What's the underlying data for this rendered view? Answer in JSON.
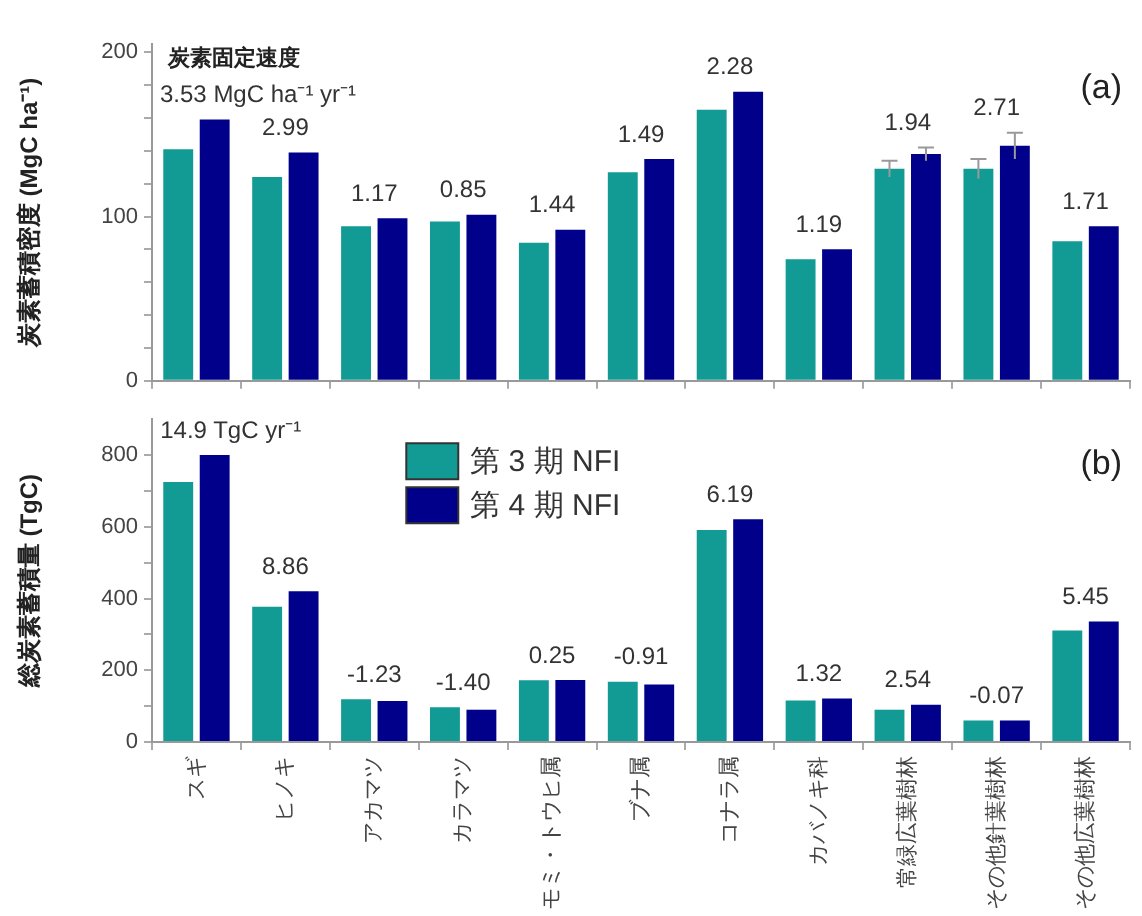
{
  "chart_data": [
    {
      "type": "bar",
      "ylabel": "炭素蓄積密度 (MgC ha⁻¹)",
      "categories": [
        "スギ",
        "ヒノキ",
        "アカマツ",
        "カラマツ",
        "モミ・トウヒ属",
        "ブナ属",
        "コナラ属",
        "カバノキ科",
        "常緑広葉樹林",
        "その他針葉樹林",
        "その他広葉樹林"
      ],
      "series": [
        {
          "color": "#129a94",
          "values": [
            141,
            124,
            94,
            97,
            84,
            127,
            165,
            74,
            129,
            129,
            85
          ],
          "errors": [
            null,
            null,
            null,
            null,
            null,
            null,
            null,
            null,
            5,
            6,
            null
          ]
        },
        {
          "color": "#00008a",
          "values": [
            159,
            139,
            99,
            101,
            92,
            135,
            176,
            80,
            138,
            143,
            94
          ],
          "errors": [
            null,
            null,
            null,
            null,
            null,
            null,
            null,
            null,
            4,
            8,
            null
          ]
        }
      ],
      "ylim": [
        0,
        205
      ],
      "yticks": [
        0,
        {
          "value": 20,
          "label": null
        },
        {
          "value": 40,
          "label": null
        },
        {
          "value": 60,
          "label": null
        },
        {
          "value": 80,
          "label": null
        },
        100,
        {
          "value": 120,
          "label": null
        },
        {
          "value": 140,
          "label": null
        },
        {
          "value": 160,
          "label": null
        },
        {
          "value": 180,
          "label": null
        },
        200
      ],
      "grid": false,
      "tick_labels": "y",
      "annotations": [
        "炭素固定速度",
        {
          "text": "3.53 MgC ha⁻¹ yr⁻¹",
          "x": "スギ",
          "y": 159
        },
        {
          "text": "2.99",
          "x": "ヒノキ",
          "y": 139
        },
        {
          "text": "1.17",
          "x": "アカマツ",
          "y": 99
        },
        {
          "text": "0.85",
          "x": "カラマツ",
          "y": 101
        },
        {
          "text": "1.44",
          "x": "モミ・トウヒ属",
          "y": 92
        },
        {
          "text": "1.49",
          "x": "ブナ属",
          "y": 135
        },
        {
          "text": "2.28",
          "x": "コナラ属",
          "y": 176
        },
        {
          "text": "1.19",
          "x": "カバノキ科",
          "y": 80
        },
        {
          "text": "1.94",
          "x": "常緑広葉樹林",
          "y": 138
        },
        {
          "text": "2.71",
          "x": "その他針葉樹林",
          "y": 143
        },
        {
          "text": "1.71",
          "x": "その他広葉樹林",
          "y": 94
        },
        "(a)"
      ]
    },
    {
      "type": "bar",
      "ylabel": "総炭素蓄積量 (TgC)",
      "categories": [
        "スギ",
        "ヒノキ",
        "アカマツ",
        "カラマツ",
        "モミ・トウヒ属",
        "ブナ属",
        "コナラ属",
        "カバノキ科",
        "常緑広葉樹林",
        "その他針葉樹林",
        "その他広葉樹林"
      ],
      "series": [
        {
          "name": "第 3 期 NFI",
          "color": "#129a94",
          "values": [
            725,
            377,
            119,
            97,
            172,
            168,
            591,
            116,
            90,
            60,
            311
          ]
        },
        {
          "name": "第 4 期 NFI",
          "color": "#00008a",
          "values": [
            800,
            420,
            114,
            90,
            173,
            160,
            621,
            121,
            104,
            60,
            336
          ]
        }
      ],
      "ylim": [
        0,
        900
      ],
      "yticks": [
        0,
        {
          "value": 100,
          "label": null
        },
        200,
        {
          "value": 300,
          "label": null
        },
        400,
        {
          "value": 500,
          "label": null
        },
        600,
        {
          "value": 700,
          "label": null
        },
        800
      ],
      "grid": false,
      "legend": "top",
      "annotations": [
        {
          "text": "14.9 TgC yr⁻¹",
          "x": "スギ",
          "y": 800
        },
        {
          "text": "8.86",
          "x": "ヒノキ",
          "y": 420
        },
        {
          "text": "-1.23",
          "x": "アカマツ",
          "y": 119
        },
        {
          "text": "-1.40",
          "x": "カラマツ",
          "y": 97
        },
        {
          "text": "0.25",
          "x": "モミ・トウヒ属",
          "y": 173
        },
        {
          "text": "-0.91",
          "x": "ブナ属",
          "y": 168
        },
        {
          "text": "6.19",
          "x": "コナラ属",
          "y": 621
        },
        {
          "text": "1.32",
          "x": "カバノキ科",
          "y": 121
        },
        {
          "text": "2.54",
          "x": "常緑広葉樹林",
          "y": 104
        },
        {
          "text": "-0.07",
          "x": "その他針葉樹林",
          "y": 60
        },
        {
          "text": "5.45",
          "x": "その他広葉樹林",
          "y": 336
        },
        "(b)"
      ]
    }
  ]
}
